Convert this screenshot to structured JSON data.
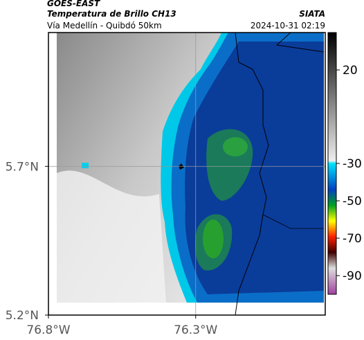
{
  "header": {
    "title": "GOES-EAST",
    "subtitle": "Temperatura de Brillo CH13",
    "source": "SIATA",
    "route": "Vía Medellín - Quibdó 50km",
    "timestamp": "2024-10-31 02:19"
  },
  "map": {
    "xlim": [
      -76.8,
      -75.86
    ],
    "ylim": [
      5.2,
      6.15
    ],
    "xticks": [
      {
        "value": -76.8,
        "label": "76.8°W"
      },
      {
        "value": -76.3,
        "label": "76.3°W"
      }
    ],
    "yticks": [
      {
        "value": 5.2,
        "label": "5.2°N"
      },
      {
        "value": 5.7,
        "label": "5.7°N"
      }
    ],
    "grid": true
  },
  "colorbar": {
    "clim": [
      -100,
      40
    ],
    "ticks": [
      20,
      -30,
      -50,
      -70,
      -90
    ]
  }
}
